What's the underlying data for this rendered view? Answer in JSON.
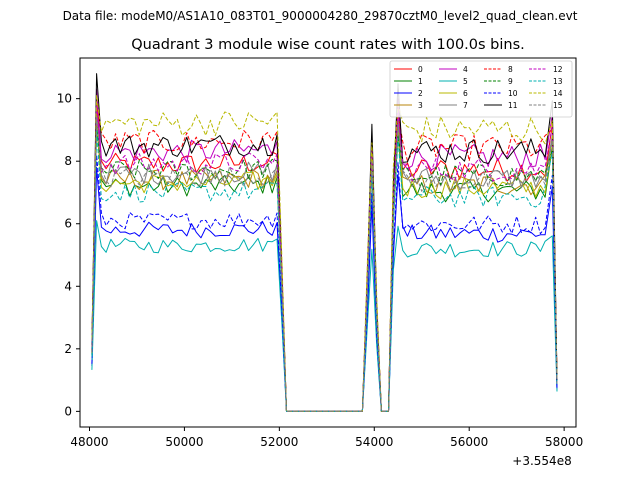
{
  "figure_header": "Data file: modeM0/AS1A10_083T01_9000004280_29870cztM0_level2_quad_clean.evt",
  "chart_data": {
    "type": "line",
    "title": "Quadrant 3 module wise count rates with 100.0s bins.",
    "xlabel": "",
    "ylabel": "",
    "x_offset_label": "+3.554e8",
    "xlim": [
      47800,
      58250
    ],
    "ylim": [
      -0.5,
      11.3
    ],
    "xticks": [
      48000,
      50000,
      52000,
      54000,
      56000,
      58000
    ],
    "yticks": [
      0,
      2,
      4,
      6,
      8,
      10
    ],
    "grid": false,
    "legend_position": "upper-right",
    "legend_columns": 4,
    "segments": [
      {
        "start": 48050,
        "end": 52050
      },
      {
        "start": 52050,
        "end": 53800,
        "zero": true
      },
      {
        "start": 53800,
        "end": 54100
      },
      {
        "start": 54100,
        "end": 54350,
        "zero": true
      },
      {
        "start": 54350,
        "end": 57850
      }
    ],
    "series": [
      {
        "name": "0",
        "color": "#ff0000",
        "dash": "solid",
        "level": 7.9,
        "peak": 10.0
      },
      {
        "name": "1",
        "color": "#008000",
        "dash": "solid",
        "level": 7.2,
        "peak": 9.2
      },
      {
        "name": "2",
        "color": "#0000ff",
        "dash": "solid",
        "level": 5.8,
        "peak": 7.8
      },
      {
        "name": "3",
        "color": "#b8860b",
        "dash": "solid",
        "level": 7.4,
        "peak": 9.5
      },
      {
        "name": "4",
        "color": "#c000c0",
        "dash": "solid",
        "level": 8.3,
        "peak": 10.3
      },
      {
        "name": "5",
        "color": "#00b0b0",
        "dash": "solid",
        "level": 5.3,
        "peak": 6.1
      },
      {
        "name": "6",
        "color": "#b8b800",
        "dash": "solid",
        "level": 7.3,
        "peak": 9.3
      },
      {
        "name": "7",
        "color": "#808080",
        "dash": "solid",
        "level": 7.6,
        "peak": 9.6
      },
      {
        "name": "8",
        "color": "#ff0000",
        "dash": "dashed",
        "level": 8.6,
        "peak": 9.8
      },
      {
        "name": "9",
        "color": "#008000",
        "dash": "dashed",
        "level": 7.7,
        "peak": 9.1
      },
      {
        "name": "10",
        "color": "#0000ff",
        "dash": "dashed",
        "level": 6.1,
        "peak": 8.2
      },
      {
        "name": "11",
        "color": "#000000",
        "dash": "solid",
        "level": 8.5,
        "peak": 10.8
      },
      {
        "name": "12",
        "color": "#c000c0",
        "dash": "dashed",
        "level": 7.9,
        "peak": 9.9
      },
      {
        "name": "13",
        "color": "#00b0b0",
        "dash": "dashed",
        "level": 7.0,
        "peak": 9.0
      },
      {
        "name": "14",
        "color": "#b8b800",
        "dash": "dashed",
        "level": 9.2,
        "peak": 10.1
      },
      {
        "name": "15",
        "color": "#808080",
        "dash": "dashed",
        "level": 7.5,
        "peak": 9.4
      }
    ]
  }
}
